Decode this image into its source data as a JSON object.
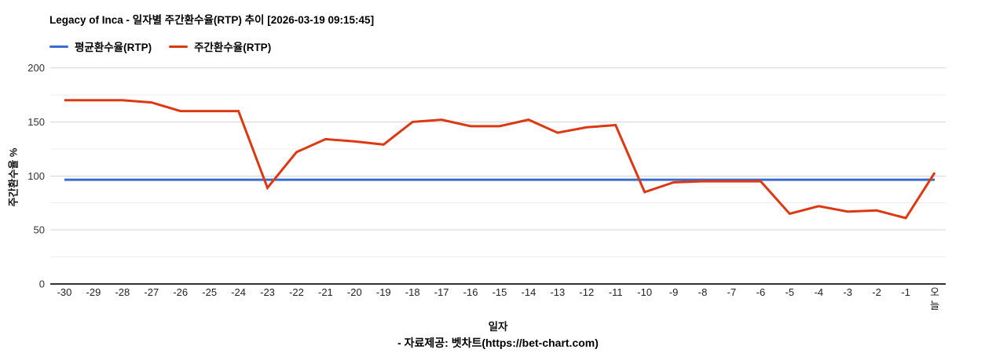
{
  "header": {
    "title": "Legacy of Inca - 일자별 주간환수율(RTP) 추이 [2026-03-19 09:15:45]"
  },
  "chart_data": {
    "type": "line",
    "title": "Legacy of Inca - 일자별 주간환수율(RTP) 추이 [2026-03-19 09:15:45]",
    "xlabel": "일자",
    "ylabel": "주간환수율 %",
    "ylim": [
      0,
      200
    ],
    "y_ticks": [
      0,
      50,
      100,
      150,
      200
    ],
    "y_minor_step": 25,
    "grid": true,
    "legend_position": "top-left",
    "categories": [
      "-30",
      "-29",
      "-28",
      "-27",
      "-26",
      "-25",
      "-24",
      "-23",
      "-22",
      "-21",
      "-20",
      "-19",
      "-18",
      "-17",
      "-16",
      "-15",
      "-14",
      "-13",
      "-12",
      "-11",
      "-10",
      "-9",
      "-8",
      "-7",
      "-6",
      "-5",
      "-4",
      "-3",
      "-2",
      "-1",
      "오늘"
    ],
    "series": [
      {
        "name": "평균환수율(RTP)",
        "type": "constant",
        "value": 96.5,
        "color": "#3b6bce"
      },
      {
        "name": "주간환수율(RTP)",
        "type": "line",
        "color": "#dc3912",
        "values": [
          170,
          170,
          170,
          168,
          160,
          160,
          160,
          89,
          122,
          134,
          132,
          129,
          150,
          152,
          146,
          146,
          152,
          140,
          145,
          147,
          85,
          94,
          95,
          95,
          95,
          65,
          72,
          67,
          68,
          61,
          103
        ]
      }
    ]
  },
  "footer": {
    "source_text": "- 자료제공: 벳차트(https://bet-chart.com)"
  }
}
